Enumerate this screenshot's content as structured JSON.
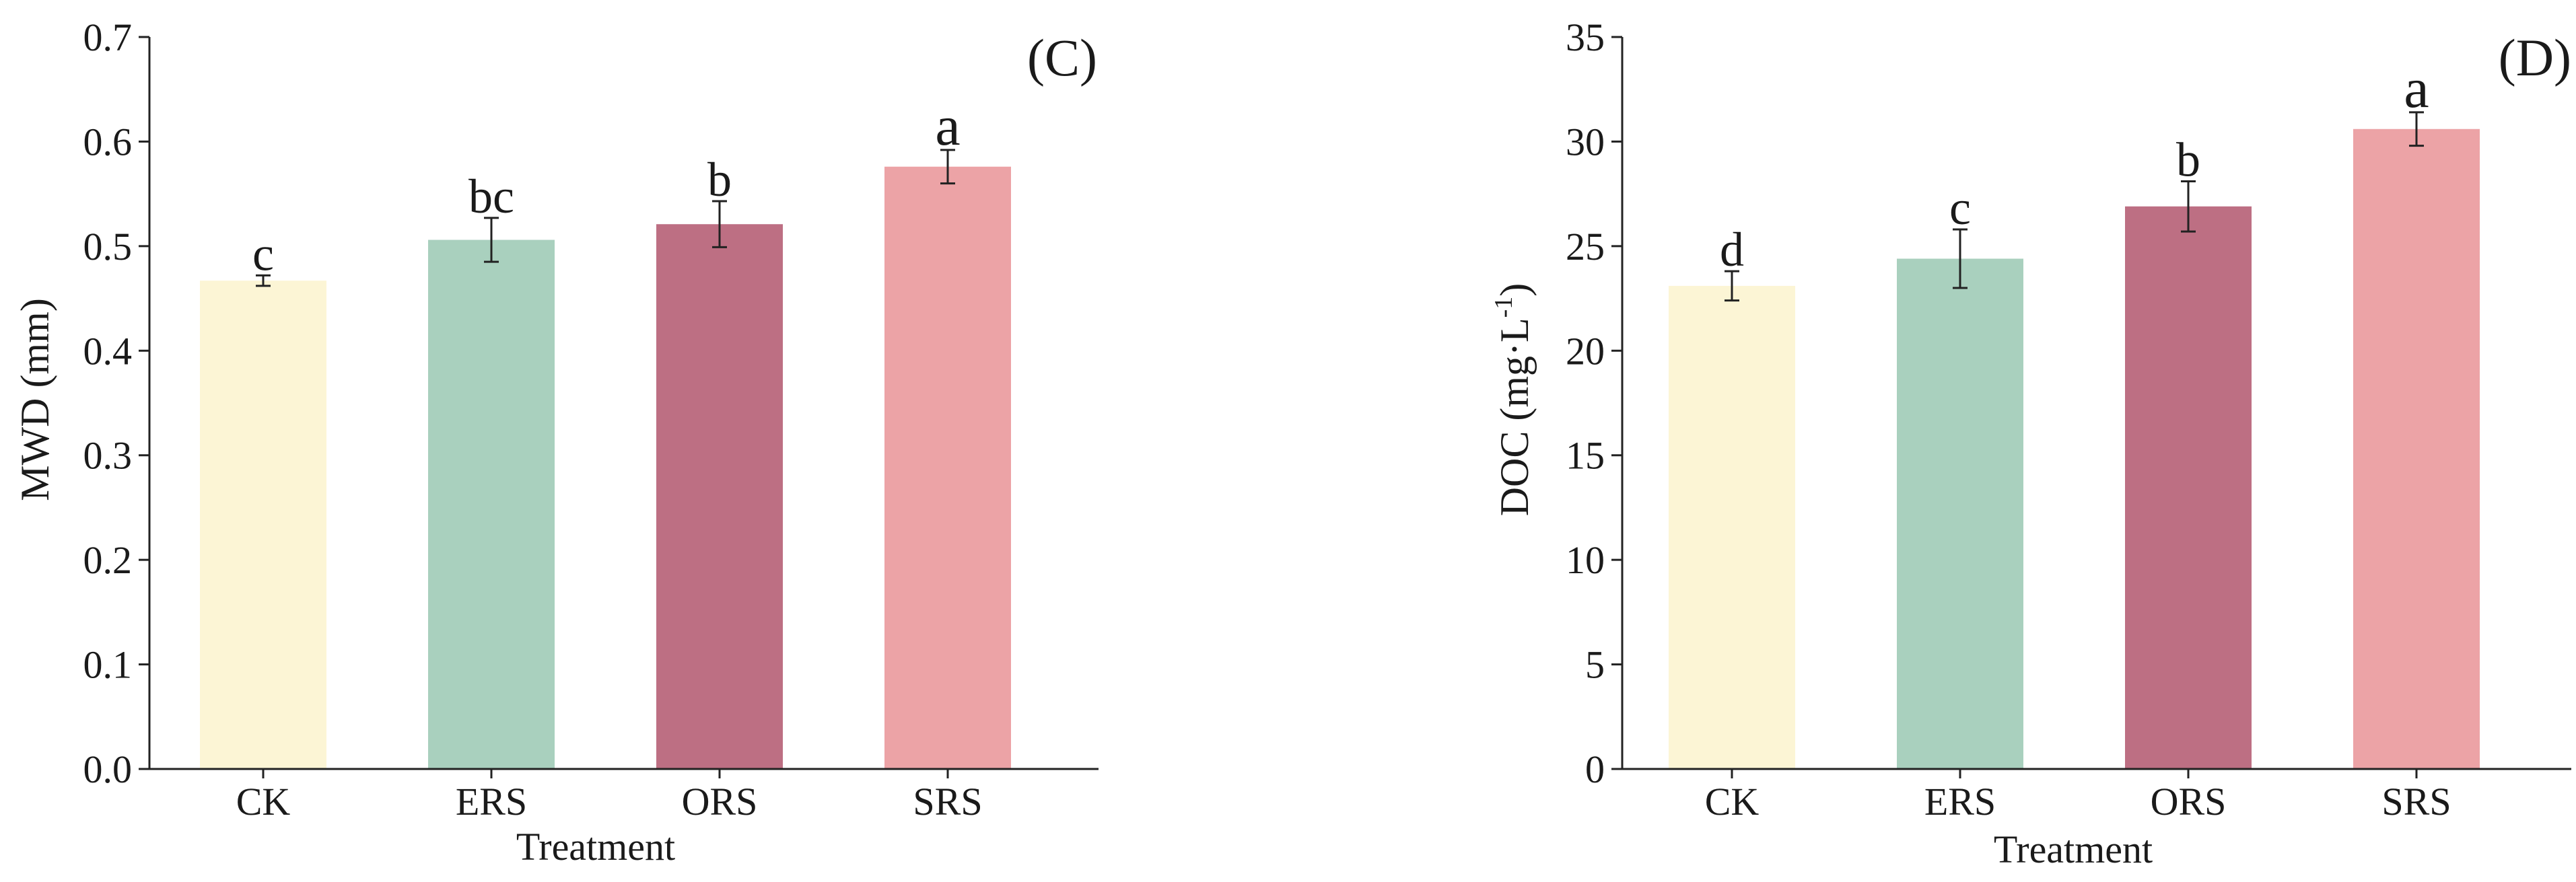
{
  "chart_data": [
    {
      "type": "bar",
      "panel_label": "(C)",
      "categories": [
        "CK",
        "ERS",
        "ORS",
        "SRS"
      ],
      "values": [
        0.467,
        0.506,
        0.521,
        0.576
      ],
      "errors": [
        0.005,
        0.021,
        0.022,
        0.016
      ],
      "letters": [
        "c",
        "bc",
        "b",
        "a"
      ],
      "colors": [
        "#fcf5d5",
        "#a9d0be",
        "#bd6f83",
        "#eca3a6"
      ],
      "xlabel": "Treatment",
      "ylabel": "MWD (mm)",
      "ylim": [
        0,
        0.7
      ],
      "yticks": [
        0.0,
        0.1,
        0.2,
        0.3,
        0.4,
        0.5,
        0.6,
        0.7
      ],
      "ytick_labels": [
        "0.0",
        "0.1",
        "0.2",
        "0.3",
        "0.4",
        "0.5",
        "0.6",
        "0.7"
      ],
      "grid": false
    },
    {
      "type": "bar",
      "panel_label": "(D)",
      "categories": [
        "CK",
        "ERS",
        "ORS",
        "SRS"
      ],
      "values": [
        23.1,
        24.4,
        26.9,
        30.6
      ],
      "errors": [
        0.7,
        1.4,
        1.2,
        0.8
      ],
      "letters": [
        "d",
        "c",
        "b",
        "a"
      ],
      "colors": [
        "#fcf5d5",
        "#a9d0be",
        "#bd6f83",
        "#eca3a6"
      ],
      "xlabel": "Treatment",
      "ylabel_main": "DOC (mg·L",
      "ylabel_sup": "-1",
      "ylabel_end": ")",
      "ylim": [
        0,
        35
      ],
      "yticks": [
        0,
        5,
        10,
        15,
        20,
        25,
        30,
        35
      ],
      "ytick_labels": [
        "0",
        "5",
        "10",
        "15",
        "20",
        "25",
        "30",
        "35"
      ],
      "grid": false
    }
  ]
}
